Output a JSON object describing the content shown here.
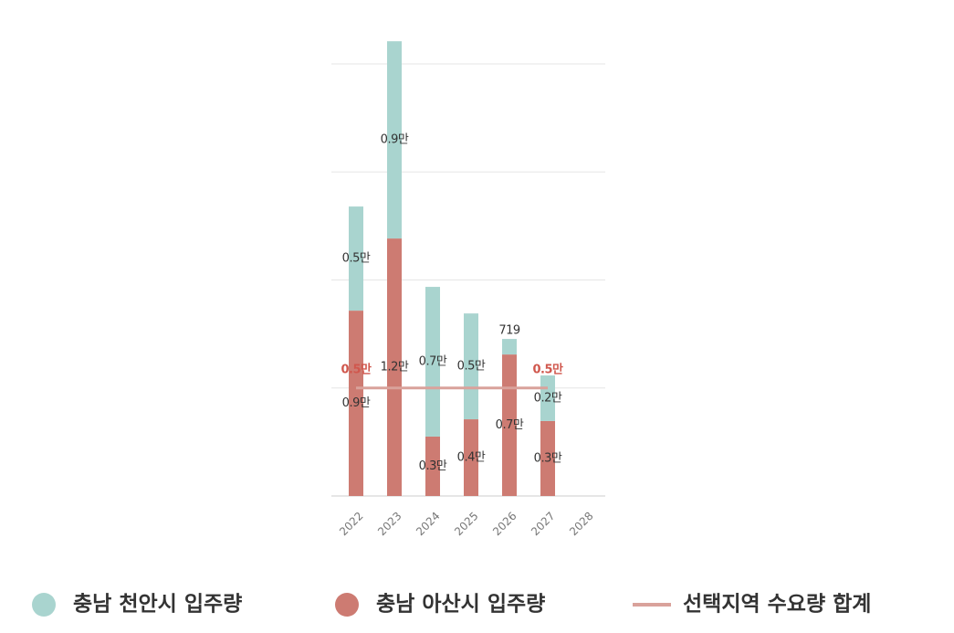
{
  "chart_data": {
    "type": "bar",
    "stacked": true,
    "categories": [
      "2022",
      "2023",
      "2024",
      "2025",
      "2026",
      "2027",
      "2028"
    ],
    "series": [
      {
        "name": "충남 아산시 입주량",
        "color": "#cd7b72",
        "values": [
          8580,
          11920,
          2750,
          3550,
          6550,
          3470,
          null
        ],
        "value_labels": [
          "0.9만",
          "1.2만",
          "0.3만",
          "0.4만",
          "0.7만",
          "0.3만",
          null
        ]
      },
      {
        "name": "충남 천안시 입주량",
        "color": "#a9d4cf",
        "values": [
          4820,
          9130,
          6930,
          4900,
          719,
          2110,
          null
        ],
        "value_labels": [
          "0.5만",
          "0.9만",
          "0.7만",
          "0.5만",
          "719",
          "0.2만",
          null
        ]
      },
      {
        "name": "선택지역 수요량 합계",
        "type": "line",
        "color": "#d9a29b",
        "values": [
          5000,
          5000,
          5000,
          5000,
          5000,
          5000,
          null
        ],
        "value_labels": [
          "0.5만",
          null,
          null,
          null,
          null,
          "0.5만",
          null
        ]
      }
    ],
    "legend_order": [
      1,
      0,
      2
    ],
    "ylim": [
      0,
      21000
    ],
    "yticks": [
      0,
      5000,
      10000,
      15000,
      20000
    ],
    "grid": true
  }
}
